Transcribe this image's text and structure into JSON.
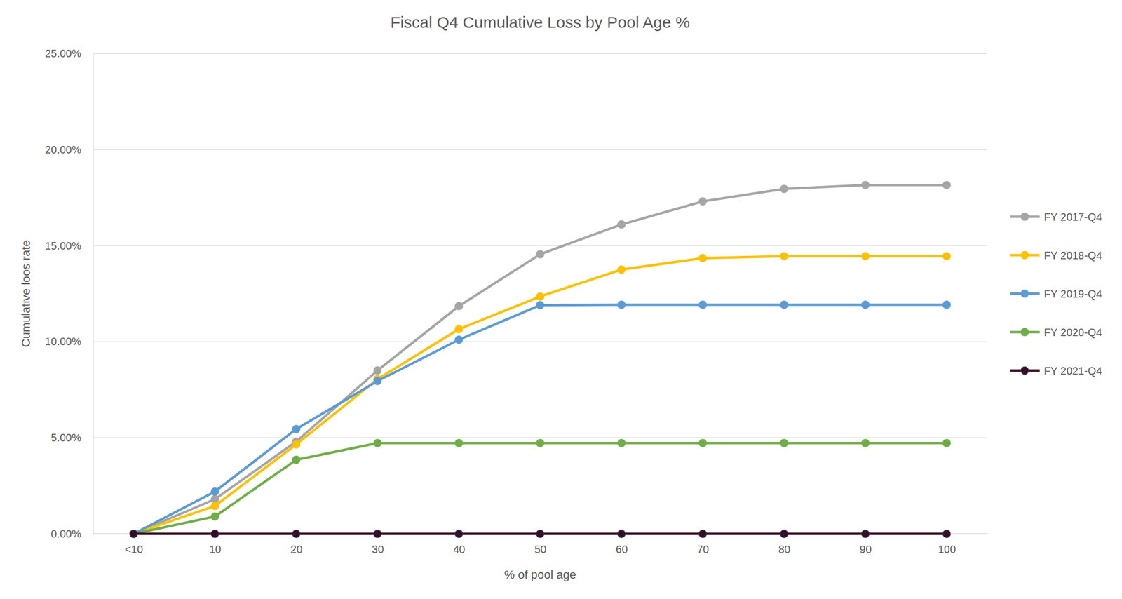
{
  "chart_data": {
    "type": "line",
    "title": "Fiscal Q4 Cumulative Loss by Pool Age %",
    "xlabel": "% of pool age",
    "ylabel": "Cumulative loos rate",
    "categories": [
      "<10",
      "10",
      "20",
      "30",
      "40",
      "50",
      "60",
      "70",
      "80",
      "90",
      "100"
    ],
    "series": [
      {
        "name": "FY 2017-Q4",
        "color": "#a5a5a5",
        "values": [
          0,
          1.8,
          4.8,
          8.5,
          11.85,
          14.55,
          16.1,
          17.3,
          17.95,
          18.15,
          18.15
        ]
      },
      {
        "name": "FY 2018-Q4",
        "color": "#ffc000",
        "values": [
          0,
          1.45,
          4.65,
          8.05,
          10.65,
          12.35,
          13.75,
          14.35,
          14.45,
          14.45,
          14.45
        ]
      },
      {
        "name": "FY 2019-Q4",
        "color": "#5b9bd5",
        "values": [
          0,
          2.2,
          5.45,
          7.95,
          10.1,
          11.9,
          11.92,
          11.92,
          11.92,
          11.92,
          11.92
        ]
      },
      {
        "name": "FY 2020-Q4",
        "color": "#70ad47",
        "values": [
          0,
          0.9,
          3.85,
          4.72,
          4.72,
          4.72,
          4.72,
          4.72,
          4.72,
          4.72,
          4.72
        ]
      },
      {
        "name": "FY 2021-Q4",
        "color": "#3d0a1e",
        "values": [
          0,
          0,
          0,
          0,
          0,
          0,
          0,
          0,
          0,
          0,
          0
        ]
      }
    ],
    "ylim": [
      0,
      25
    ],
    "yticks": [
      {
        "value": 0,
        "label": "0.00%"
      },
      {
        "value": 5,
        "label": "5.00%"
      },
      {
        "value": 10,
        "label": "10.00%"
      },
      {
        "value": 15,
        "label": "15.00%"
      },
      {
        "value": 20,
        "label": "20.00%"
      },
      {
        "value": 25,
        "label": "25.00%"
      }
    ],
    "grid": true,
    "legend": "right",
    "marker": "circle"
  }
}
